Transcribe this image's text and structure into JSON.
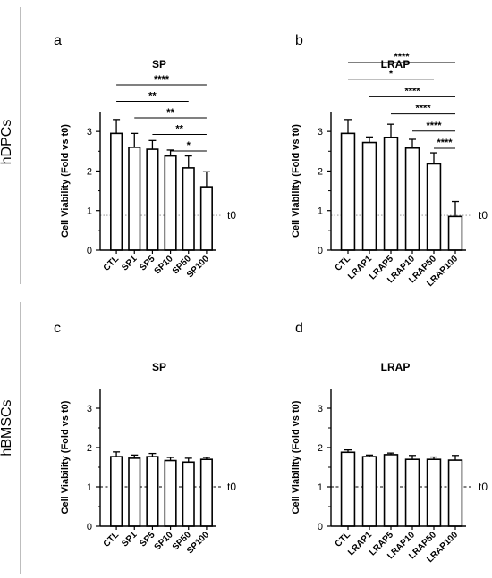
{
  "row_labels": [
    "hDPCs",
    "hBMSCs"
  ],
  "chart_data": [
    {
      "panel": "a",
      "type": "bar",
      "title": "SP",
      "categories": [
        "CTL",
        "SP1",
        "SP5",
        "SP10",
        "SP50",
        "SP100"
      ],
      "values": [
        2.95,
        2.6,
        2.55,
        2.38,
        2.08,
        1.6
      ],
      "errors": [
        0.35,
        0.35,
        0.22,
        0.15,
        0.3,
        0.38
      ],
      "ylabel": "Cell Viability (Fold vs t0)",
      "xlabel": "",
      "ylim": [
        0,
        3.5
      ],
      "yticks": [
        0,
        1,
        2,
        3
      ],
      "baseline": {
        "value": 0.88,
        "label": "t0",
        "style": "dotted"
      },
      "significance": [
        {
          "from": 0,
          "to": 5,
          "label": "****"
        },
        {
          "from": 0,
          "to": 4,
          "label": "**"
        },
        {
          "from": 1,
          "to": 5,
          "label": "**"
        },
        {
          "from": 2,
          "to": 5,
          "label": "**"
        },
        {
          "from": 3,
          "to": 5,
          "label": "*"
        }
      ]
    },
    {
      "panel": "b",
      "type": "bar",
      "title": "LRAP",
      "categories": [
        "CTL",
        "LRAP1",
        "LRAP5",
        "LRAP10",
        "LRAP50",
        "LRAP100"
      ],
      "values": [
        2.95,
        2.72,
        2.85,
        2.58,
        2.18,
        0.85
      ],
      "errors": [
        0.35,
        0.14,
        0.33,
        0.22,
        0.28,
        0.38
      ],
      "ylabel": "Cell Viability (Fold vs t0)",
      "xlabel": "",
      "ylim": [
        0,
        3.5
      ],
      "yticks": [
        0,
        1,
        2,
        3
      ],
      "baseline": {
        "value": 0.88,
        "label": "t0",
        "style": "dotted"
      },
      "significance": [
        {
          "from": 0,
          "to": 5,
          "label": "****"
        },
        {
          "from": 0,
          "to": 4,
          "label": "*"
        },
        {
          "from": 1,
          "to": 5,
          "label": "****"
        },
        {
          "from": 2,
          "to": 5,
          "label": "****"
        },
        {
          "from": 3,
          "to": 5,
          "label": "****"
        },
        {
          "from": 4,
          "to": 5,
          "label": "****"
        }
      ]
    },
    {
      "panel": "c",
      "type": "bar",
      "title": "SP",
      "categories": [
        "CTL",
        "SP1",
        "SP5",
        "SP10",
        "SP50",
        "SP100"
      ],
      "values": [
        1.77,
        1.73,
        1.77,
        1.67,
        1.63,
        1.7
      ],
      "errors": [
        0.12,
        0.08,
        0.08,
        0.08,
        0.1,
        0.05
      ],
      "ylabel": "Cell Viability (Fold vs t0)",
      "xlabel": "",
      "ylim": [
        0,
        3.5
      ],
      "yticks": [
        0,
        1,
        2,
        3
      ],
      "baseline": {
        "value": 1.0,
        "label": "t0",
        "style": "dashed"
      },
      "significance": []
    },
    {
      "panel": "d",
      "type": "bar",
      "title": "LRAP",
      "categories": [
        "CTL",
        "LRAP1",
        "LRAP5",
        "LRAP10",
        "LRAP50",
        "LRAP100"
      ],
      "values": [
        1.88,
        1.77,
        1.82,
        1.7,
        1.7,
        1.68
      ],
      "errors": [
        0.06,
        0.04,
        0.04,
        0.1,
        0.06,
        0.12
      ],
      "ylabel": "Cell Viability (Fold vs t0)",
      "xlabel": "",
      "ylim": [
        0,
        3.5
      ],
      "yticks": [
        0,
        1,
        2,
        3
      ],
      "baseline": {
        "value": 1.0,
        "label": "t0",
        "style": "dashed"
      },
      "significance": []
    }
  ]
}
